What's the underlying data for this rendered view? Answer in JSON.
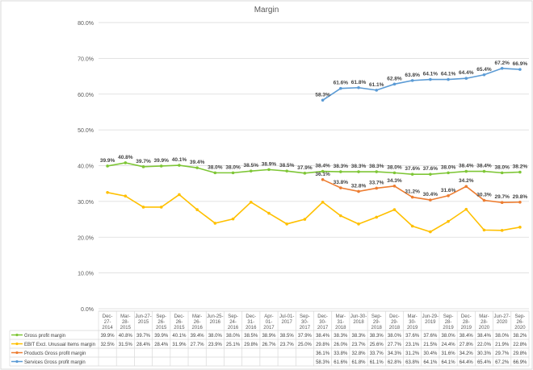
{
  "chart_data": {
    "type": "line",
    "title": "Margin",
    "ylim": [
      0,
      80
    ],
    "yticks": [
      "0.0%",
      "10.0%",
      "20.0%",
      "30.0%",
      "40.0%",
      "50.0%",
      "60.0%",
      "70.0%",
      "80.0%"
    ],
    "grid": true,
    "legend": "data-table-bottom",
    "categories": [
      "Dec-27-2014",
      "Mar-28-2015",
      "Jun-27-2015",
      "Sep-26-2015",
      "Dec-26-2015",
      "Mar-26-2016",
      "Jun-25-2016",
      "Sep-24-2016",
      "Dec-31-2016",
      "Apr-01-2017",
      "Jul-01-2017",
      "Sep-30-2017",
      "Dec-30-2017",
      "Mar-31-2018",
      "Jun-30-2018",
      "Sep-29-2018",
      "Dec-29-2018",
      "Mar-30-2019",
      "Jun-29-2019",
      "Sep-28-2019",
      "Dec-28-2019",
      "Mar-28-2020",
      "Jun-27-2020",
      "Sep-26-2020"
    ],
    "series": [
      {
        "name": "Gross profit margin",
        "color": "#7ec636",
        "labels": true,
        "values": [
          39.9,
          40.8,
          39.7,
          39.9,
          40.1,
          39.4,
          38.0,
          38.0,
          38.5,
          38.9,
          38.5,
          37.9,
          38.4,
          38.3,
          38.3,
          38.3,
          38.0,
          37.6,
          37.6,
          38.0,
          38.4,
          38.4,
          38.0,
          38.2
        ]
      },
      {
        "name": "EBIT Excl. Unusual Items margin",
        "color": "#ffc000",
        "labels": false,
        "values": [
          32.5,
          31.5,
          28.4,
          28.4,
          31.9,
          27.7,
          23.9,
          25.1,
          29.8,
          26.7,
          23.7,
          25.0,
          29.8,
          26.0,
          23.7,
          25.6,
          27.7,
          23.1,
          21.5,
          24.4,
          27.8,
          22.0,
          21.9,
          22.8
        ]
      },
      {
        "name": "Products Gross profit margin",
        "color": "#ed7d31",
        "labels": true,
        "values": [
          null,
          null,
          null,
          null,
          null,
          null,
          null,
          null,
          null,
          null,
          null,
          null,
          36.1,
          33.8,
          32.8,
          33.7,
          34.3,
          31.2,
          30.4,
          31.6,
          34.2,
          30.3,
          29.7,
          29.8
        ]
      },
      {
        "name": "Services Gross profit margin",
        "color": "#5b9bd5",
        "labels": true,
        "values": [
          null,
          null,
          null,
          null,
          null,
          null,
          null,
          null,
          null,
          null,
          null,
          null,
          58.3,
          61.6,
          61.8,
          61.1,
          62.8,
          63.8,
          64.1,
          64.1,
          64.4,
          65.4,
          67.2,
          66.9
        ]
      }
    ]
  }
}
